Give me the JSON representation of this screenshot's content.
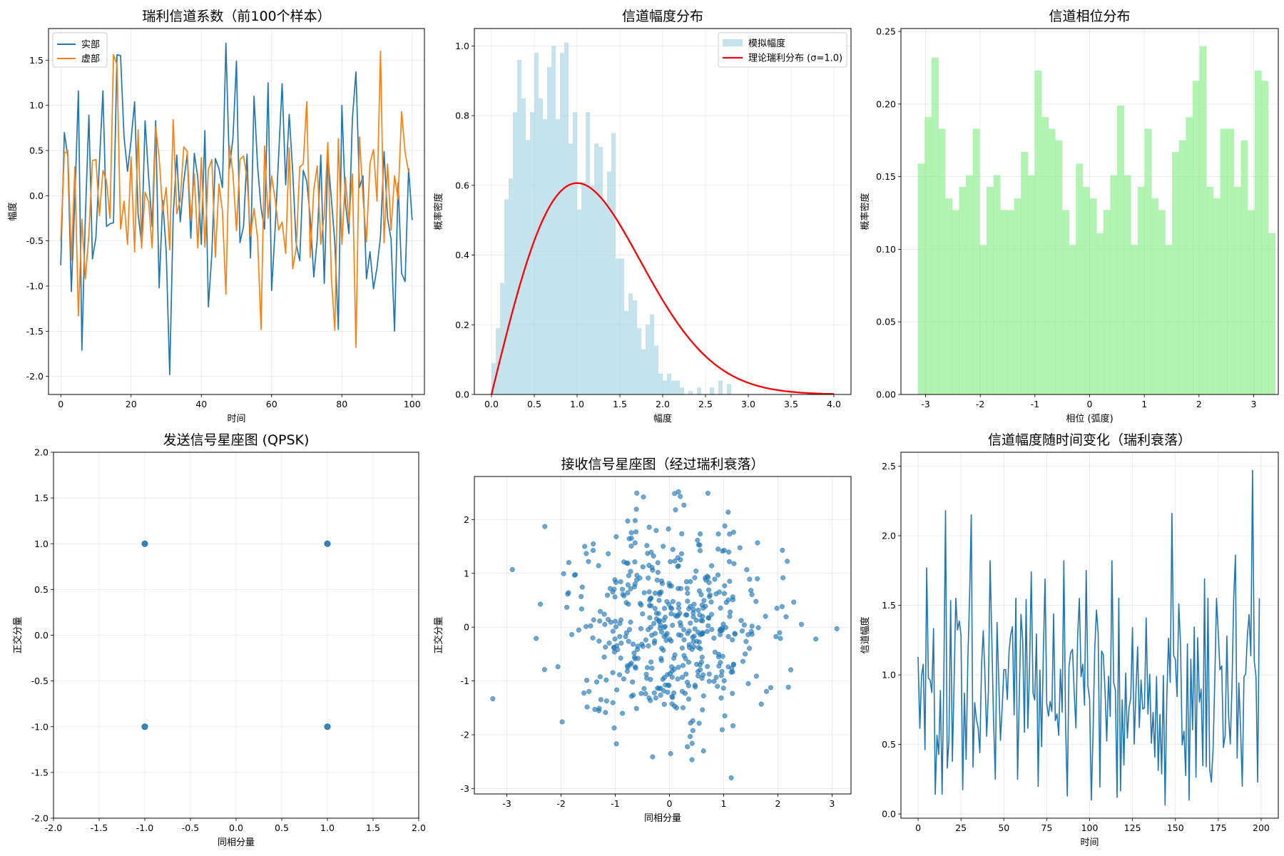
{
  "chart_data": [
    {
      "type": "line",
      "title": "瑞利信道系数（前100个样本）",
      "xlabel": "时间",
      "ylabel": "幅度",
      "xlim": [
        -3.5,
        103.5
      ],
      "ylim": [
        -2.2,
        1.85
      ],
      "xticks": [
        0,
        20,
        40,
        60,
        80,
        100
      ],
      "yticks": [
        -2.0,
        -1.5,
        -1.0,
        -0.5,
        0.0,
        0.5,
        1.0,
        1.5
      ],
      "grid": true,
      "legend": "top-left",
      "series": [
        {
          "name": "实部",
          "color": "#1f77b4",
          "values": [
            -0.77,
            0.7,
            0.43,
            -1.06,
            -0.05,
            1.16,
            -1.71,
            -0.22,
            0.89,
            -0.7,
            -0.46,
            0.37,
            1.16,
            -0.34,
            -0.31,
            -0.3,
            1.56,
            1.55,
            0.65,
            0.27,
            0.61,
            1.04,
            -0.2,
            -0.53,
            0.83,
            0.2,
            -0.34,
            0.83,
            -1.02,
            -0.05,
            -0.62,
            -1.98,
            -0.22,
            0.45,
            -0.29,
            0.16,
            0.46,
            -0.47,
            0.47,
            0.2,
            -0.54,
            0.72,
            -1.23,
            -0.64,
            0.41,
            0.3,
            0.09,
            1.69,
            0.3,
            0.64,
            1.49,
            -0.52,
            -0.34,
            0.46,
            -0.69,
            1.1,
            0.33,
            -0.14,
            -0.37,
            1.25,
            -1.05,
            -0.37,
            0.44,
            1.24,
            0.12,
            0.9,
            0.27,
            -0.53,
            -0.72,
            0.28,
            0.16,
            -0.24,
            -0.9,
            -0.47,
            0.45,
            -0.97,
            0.43,
            -0.03,
            -0.52,
            -1.48,
            1.0,
            -0.08,
            -0.42,
            0.85,
            1.37,
            0.09,
            0.22,
            -0.92,
            -0.62,
            -1.03,
            -0.8,
            -0.45,
            0.49,
            -0.25,
            -0.48,
            -1.5,
            0.14,
            -0.86,
            -0.95,
            0.3,
            -0.27
          ]
        },
        {
          "name": "虚部",
          "color": "#ff7f0e",
          "values": [
            -0.5,
            0.47,
            0.5,
            -0.71,
            0.32,
            -1.33,
            -0.26,
            -0.92,
            -0.43,
            0.39,
            0.4,
            -0.22,
            0.28,
            0.16,
            -0.25,
            1.56,
            1.45,
            -0.37,
            -0.06,
            -0.54,
            0.43,
            -0.62,
            0.73,
            -0.58,
            0.04,
            -0.07,
            -0.58,
            0.76,
            0.42,
            -0.18,
            0.09,
            -0.6,
            0.84,
            -0.2,
            -0.05,
            0.54,
            0.49,
            -0.27,
            0.24,
            -0.58,
            0.42,
            -0.57,
            0.29,
            0.4,
            -0.68,
            0.13,
            -0.17,
            -1.09,
            0.56,
            0.24,
            -0.39,
            0.4,
            0.44,
            0.19,
            -0.45,
            -0.14,
            -0.47,
            -1.48,
            0.55,
            -0.25,
            0.22,
            -0.04,
            -0.38,
            -0.29,
            -0.64,
            0.53,
            -0.81,
            -0.59,
            0.32,
            0.35,
            1.04,
            -0.68,
            0.07,
            0.33,
            -0.54,
            -0.21,
            0.59,
            -0.9,
            -1.49,
            0.63,
            -0.54,
            0.2,
            -0.3,
            0.24,
            -1.68,
            0.65,
            -0.01,
            -0.51,
            0.36,
            0.51,
            -0.06,
            1.6,
            -0.52,
            0.35,
            -0.38,
            0.22,
            -0.04,
            0.93,
            0.48,
            0.26
          ]
        }
      ]
    },
    {
      "type": "histogram",
      "title": "信道幅度分布",
      "xlabel": "幅度",
      "ylabel": "概率密度",
      "xlim": [
        -0.2,
        4.2
      ],
      "ylim": [
        0,
        1.05
      ],
      "xticks": [
        0.0,
        0.5,
        1.0,
        1.5,
        2.0,
        2.5,
        3.0,
        3.5,
        4.0
      ],
      "yticks": [
        0.0,
        0.2,
        0.4,
        0.6,
        0.8,
        1.0
      ],
      "grid": true,
      "legend": "top-right",
      "bin_start": 0.0,
      "bin_width": 0.05,
      "bar_color": "#add8e6",
      "bar_label": "模拟幅度",
      "values": [
        0.09,
        0.19,
        0.32,
        0.56,
        0.62,
        0.81,
        0.96,
        0.85,
        0.73,
        0.81,
        0.98,
        0.85,
        0.79,
        0.94,
        1.0,
        0.79,
        0.98,
        1.01,
        0.72,
        0.81,
        0.53,
        0.61,
        0.81,
        0.6,
        0.72,
        0.71,
        0.55,
        0.64,
        0.75,
        0.39,
        0.39,
        0.24,
        0.29,
        0.27,
        0.19,
        0.13,
        0.2,
        0.23,
        0.14,
        0.06,
        0.04,
        0.06,
        0.04,
        0.04,
        0.02,
        0.0,
        0.01,
        0.0,
        0.02,
        0.0,
        0.0,
        0.02,
        0.0,
        0.04,
        0.0,
        0.03
      ],
      "curve": {
        "name": "理论瑞利分布 (σ=1.0)",
        "color": "#ff0000",
        "sigma": 1.0,
        "x_range": [
          0,
          4
        ]
      }
    },
    {
      "type": "histogram",
      "title": "信道相位分布",
      "xlabel": "相位 (弧度)",
      "ylabel": "概率密度",
      "xlim": [
        -3.45,
        3.45
      ],
      "ylim": [
        0,
        0.252
      ],
      "xticks": [
        -3,
        -2,
        -1,
        0,
        1,
        2,
        3
      ],
      "yticks": [
        0.0,
        0.05,
        0.1,
        0.15,
        0.2,
        0.25
      ],
      "grid": true,
      "bin_start": -3.14159,
      "bin_width": 0.12566,
      "bar_color": "#90ee90",
      "values": [
        0.159,
        0.191,
        0.232,
        0.183,
        0.135,
        0.127,
        0.143,
        0.151,
        0.183,
        0.103,
        0.143,
        0.151,
        0.127,
        0.127,
        0.135,
        0.167,
        0.151,
        0.223,
        0.191,
        0.183,
        0.175,
        0.127,
        0.103,
        0.159,
        0.143,
        0.135,
        0.111,
        0.127,
        0.151,
        0.199,
        0.151,
        0.103,
        0.143,
        0.183,
        0.135,
        0.127,
        0.103,
        0.167,
        0.175,
        0.191,
        0.216,
        0.24,
        0.143,
        0.135,
        0.183,
        0.183,
        0.143,
        0.175,
        0.127,
        0.223,
        0.216,
        0.111
      ]
    },
    {
      "type": "scatter",
      "title": "发送信号星座图 (QPSK)",
      "xlabel": "同相分量",
      "ylabel": "正交分量",
      "xlim": [
        -2.0,
        2.0
      ],
      "ylim": [
        -2.0,
        2.0
      ],
      "xticks": [
        -2.0,
        -1.5,
        -1.0,
        -0.5,
        0.0,
        0.5,
        1.0,
        1.5,
        2.0
      ],
      "yticks": [
        -2.0,
        -1.5,
        -1.0,
        -0.5,
        0.0,
        0.5,
        1.0,
        1.5,
        2.0
      ],
      "grid": true,
      "color": "#1f77b4",
      "points": [
        [
          -1,
          1
        ],
        [
          1,
          1
        ],
        [
          -1,
          -1
        ],
        [
          1,
          -1
        ]
      ]
    },
    {
      "type": "scatter",
      "title": "接收信号星座图（经过瑞利衰落）",
      "xlabel": "同相分量",
      "ylabel": "正交分量",
      "xlim": [
        -3.6,
        3.35
      ],
      "ylim": [
        -3.1,
        2.8
      ],
      "xticks": [
        -3,
        -2,
        -1,
        0,
        1,
        2,
        3
      ],
      "yticks": [
        -3,
        -2,
        -1,
        0,
        1,
        2
      ],
      "grid": true,
      "color": "#1f77b4",
      "point_count": 500,
      "outliers": [
        [
          -3.26,
          -1.33
        ],
        [
          -2.9,
          1.07
        ],
        [
          3.09,
          -0.03
        ],
        [
          1.14,
          -2.8
        ],
        [
          -0.31,
          -2.41
        ],
        [
          0.71,
          2.49
        ],
        [
          -0.48,
          2.42
        ],
        [
          2.7,
          -0.22
        ],
        [
          -2.3,
          1.87
        ],
        [
          0.2,
          2.43
        ],
        [
          -1.98,
          -1.76
        ],
        [
          -2.46,
          -0.21
        ]
      ]
    },
    {
      "type": "line",
      "title": "信道幅度随时间变化（瑞利衰落）",
      "xlabel": "时间",
      "ylabel": "信道幅度",
      "xlim": [
        -10,
        210
      ],
      "ylim": [
        -0.03,
        2.6
      ],
      "xticks": [
        0,
        25,
        50,
        75,
        100,
        125,
        150,
        175,
        200
      ],
      "yticks": [
        0.0,
        0.5,
        1.0,
        1.5,
        2.0,
        2.5
      ],
      "grid": true,
      "series": [
        {
          "color": "#1f77b4",
          "count": 200,
          "peaks": [
            [
              5,
              1.77
            ],
            [
              16,
              2.18
            ],
            [
              31,
              2.15
            ],
            [
              42,
              1.82
            ],
            [
              66,
              1.74
            ],
            [
              74,
              1.69
            ],
            [
              85,
              1.82
            ],
            [
              98,
              1.75
            ],
            [
              113,
              1.82
            ],
            [
              125,
              1.34
            ],
            [
              148,
              2.16
            ],
            [
              167,
              1.69
            ],
            [
              185,
              1.86
            ],
            [
              195,
              2.47
            ]
          ],
          "troughs": [
            [
              17,
              0.33
            ],
            [
              36,
              0.44
            ],
            [
              45,
              0.25
            ],
            [
              58,
              0.25
            ],
            [
              87,
              0.13
            ],
            [
              101,
              0.1
            ],
            [
              116,
              0.12
            ],
            [
              158,
              0.1
            ],
            [
              171,
              0.23
            ],
            [
              189,
              0.2
            ],
            [
              198,
              0.23
            ]
          ]
        }
      ]
    }
  ]
}
